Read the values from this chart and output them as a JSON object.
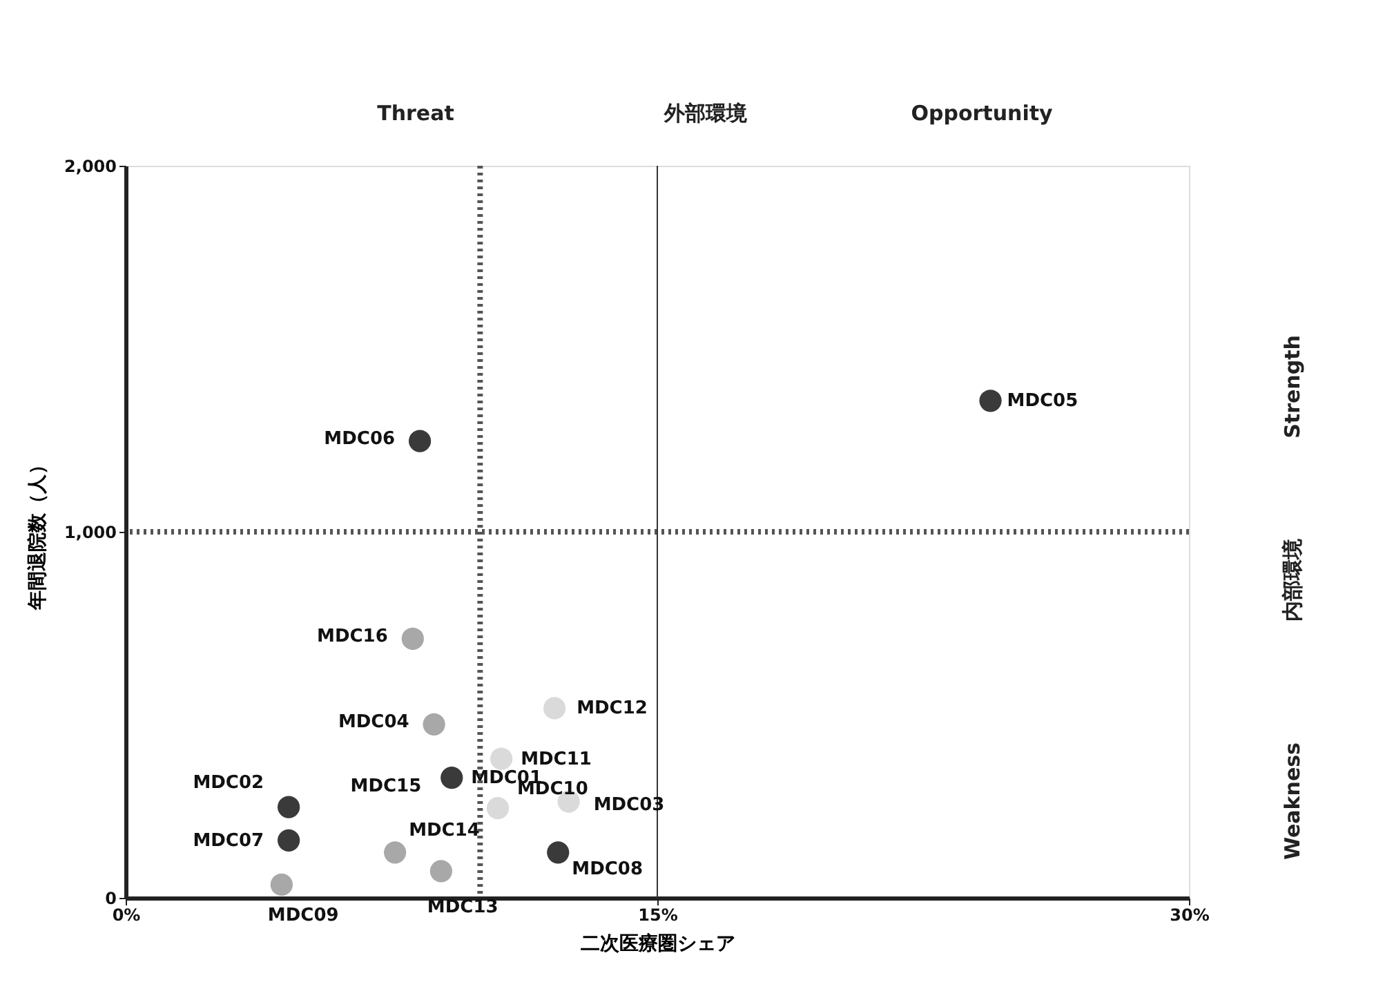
{
  "chart_data": {
    "type": "scatter",
    "xlabel": "二次医療圏シェア",
    "ylabel": "年間退院数（人）",
    "x": [
      24.4,
      8.3,
      8.1,
      8.7,
      12.1,
      10.6,
      9.2,
      12.5,
      10.5,
      12.2,
      7.6,
      8.9,
      4.6,
      4.6,
      4.4
    ],
    "values": [
      1358,
      1248,
      708,
      474,
      518,
      380,
      328,
      263,
      245,
      124,
      124,
      73,
      248,
      157,
      36
    ],
    "colors": [
      "#3a3a3a",
      "#3a3a3a",
      "#a8a8a8",
      "#a8a8a8",
      "#dadada",
      "#dadada",
      "#3a3a3a",
      "#dadada",
      "#dadada",
      "#3a3a3a",
      "#a8a8a8",
      "#a8a8a8",
      "#3a3a3a",
      "#3a3a3a",
      "#a8a8a8"
    ],
    "value_labels": [
      "MDC05",
      "MDC06",
      "MDC16",
      "MDC04",
      "MDC12",
      "MDC11",
      "MDC01",
      "MDC03",
      "MDC10",
      "MDC08",
      "MDC14",
      "MDC13",
      "MDC02",
      "MDC07",
      "MDC09"
    ],
    "xlim": [
      0,
      30
    ],
    "xticks": [
      {
        "value": 0,
        "label": "0%"
      },
      {
        "value": 15,
        "label": "15%"
      },
      {
        "value": 30,
        "label": "30%"
      }
    ],
    "ylim": [
      0,
      2000
    ],
    "yticks": [
      {
        "value": 0,
        "label": "0"
      },
      {
        "value": 1000,
        "label": "1,000"
      },
      {
        "value": 2000,
        "label": "2,000"
      }
    ],
    "grid": false,
    "marker": "circle",
    "ref_lines": [
      {
        "axis": "x",
        "value": 10,
        "line_style": "dotted",
        "color": "#555555"
      },
      {
        "axis": "y",
        "value": 1000,
        "line_style": "dotted",
        "color": "#555555"
      },
      {
        "axis": "x",
        "value": 15,
        "line_style": "solid",
        "color": "#333333"
      }
    ],
    "annotations": [
      "Threat",
      "外部環境",
      "Opportunity",
      "Strength",
      "内部環境",
      "Weakness",
      {
        "text": "MDC15",
        "x": 9.2,
        "y": 328
      }
    ]
  }
}
